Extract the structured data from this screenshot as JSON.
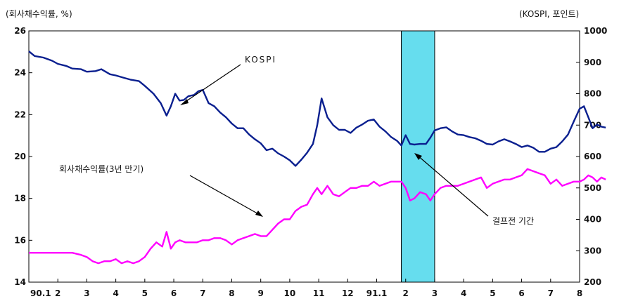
{
  "chart_data": {
    "type": "line",
    "left_axis_label": "(회사채수익률, %)",
    "right_axis_label": "(KOSPI, 포인트)",
    "left_ylim": [
      14,
      26
    ],
    "left_ticks": [
      "26",
      "24",
      "22",
      "20",
      "18",
      "16",
      "14"
    ],
    "right_ylim": [
      200,
      1000
    ],
    "right_ticks": [
      "1000",
      "900",
      "800",
      "700",
      "600",
      "500",
      "400",
      "300",
      "200"
    ],
    "x_tick_labels": [
      "90.1",
      "2",
      "3",
      "4",
      "5",
      "6",
      "7",
      "8",
      "9",
      "10",
      "11",
      "12",
      "91.1",
      "2",
      "3",
      "4",
      "5",
      "6",
      "7",
      "8"
    ],
    "shaded_period": {
      "start": 12.85,
      "end": 14.0,
      "color": "#66ddee"
    },
    "series": [
      {
        "name": "KOSPI",
        "axis": "right",
        "color": "#0a1f8f",
        "x": [
          0,
          0.2,
          0.5,
          0.8,
          1.0,
          1.3,
          1.5,
          1.8,
          2.0,
          2.3,
          2.5,
          2.8,
          3.0,
          3.3,
          3.5,
          3.8,
          4.0,
          4.3,
          4.55,
          4.75,
          4.9,
          5.05,
          5.2,
          5.35,
          5.5,
          5.7,
          5.85,
          6.0,
          6.2,
          6.4,
          6.6,
          6.8,
          7.0,
          7.2,
          7.4,
          7.6,
          7.8,
          8.0,
          8.2,
          8.4,
          8.6,
          8.8,
          9.0,
          9.2,
          9.4,
          9.6,
          9.8,
          9.95,
          10.1,
          10.3,
          10.5,
          10.7,
          10.9,
          11.1,
          11.3,
          11.5,
          11.7,
          11.9,
          12.1,
          12.3,
          12.5,
          12.7,
          12.85,
          13.0,
          13.15,
          13.3,
          13.5,
          13.7,
          13.85,
          14.0,
          14.2,
          14.4,
          14.6,
          14.8,
          15.0,
          15.2,
          15.4,
          15.6,
          15.8,
          16.0,
          16.2,
          16.4,
          16.6,
          16.8,
          17.0,
          17.2,
          17.4,
          17.6,
          17.8,
          18.0,
          18.2,
          18.4,
          18.6,
          18.8,
          19.0,
          19.15,
          19.3,
          19.45,
          19.6,
          19.75,
          19.9
        ],
        "values": [
          935,
          920,
          915,
          905,
          895,
          888,
          880,
          878,
          870,
          872,
          878,
          862,
          858,
          850,
          845,
          840,
          825,
          800,
          770,
          730,
          760,
          800,
          778,
          780,
          792,
          796,
          808,
          812,
          770,
          760,
          740,
          725,
          705,
          690,
          690,
          670,
          655,
          642,
          620,
          625,
          610,
          600,
          588,
          570,
          590,
          612,
          640,
          700,
          785,
          725,
          700,
          685,
          685,
          675,
          692,
          702,
          714,
          718,
          695,
          680,
          662,
          650,
          635,
          668,
          640,
          638,
          640,
          640,
          660,
          683,
          690,
          693,
          680,
          670,
          668,
          662,
          658,
          650,
          640,
          638,
          648,
          655,
          648,
          640,
          630,
          635,
          628,
          615,
          615,
          625,
          630,
          648,
          670,
          712,
          752,
          760,
          725,
          690,
          702,
          695,
          692
        ]
      },
      {
        "name": "회사채수익률(3년 만기)",
        "axis": "left",
        "color": "#ff00ff",
        "x": [
          0,
          0.3,
          0.6,
          0.9,
          1.2,
          1.5,
          1.8,
          2.0,
          2.2,
          2.4,
          2.6,
          2.8,
          3.0,
          3.2,
          3.4,
          3.6,
          3.8,
          4.0,
          4.2,
          4.4,
          4.6,
          4.75,
          4.9,
          5.05,
          5.2,
          5.4,
          5.6,
          5.8,
          6.0,
          6.2,
          6.4,
          6.6,
          6.8,
          7.0,
          7.2,
          7.4,
          7.6,
          7.8,
          8.0,
          8.2,
          8.4,
          8.6,
          8.8,
          9.0,
          9.2,
          9.4,
          9.6,
          9.8,
          9.95,
          10.1,
          10.3,
          10.5,
          10.7,
          10.9,
          11.1,
          11.3,
          11.5,
          11.7,
          11.9,
          12.1,
          12.3,
          12.5,
          12.7,
          12.85,
          13.0,
          13.15,
          13.3,
          13.5,
          13.7,
          13.85,
          14.0,
          14.2,
          14.4,
          14.6,
          14.8,
          15.0,
          15.2,
          15.4,
          15.6,
          15.8,
          16.0,
          16.2,
          16.4,
          16.6,
          16.8,
          17.0,
          17.2,
          17.4,
          17.6,
          17.8,
          18.0,
          18.2,
          18.4,
          18.6,
          18.8,
          19.0,
          19.15,
          19.3,
          19.45,
          19.6,
          19.75,
          19.9
        ],
        "values": [
          15.4,
          15.4,
          15.4,
          15.4,
          15.4,
          15.4,
          15.3,
          15.2,
          15.0,
          14.9,
          15.0,
          15.0,
          15.1,
          14.9,
          15.0,
          14.9,
          15.0,
          15.2,
          15.6,
          15.9,
          15.7,
          16.4,
          15.6,
          15.9,
          16.0,
          15.9,
          15.9,
          15.9,
          16.0,
          16.0,
          16.1,
          16.1,
          16.0,
          15.8,
          16.0,
          16.1,
          16.2,
          16.3,
          16.2,
          16.2,
          16.5,
          16.8,
          17.0,
          17.0,
          17.4,
          17.6,
          17.7,
          18.2,
          18.5,
          18.2,
          18.6,
          18.2,
          18.1,
          18.3,
          18.5,
          18.5,
          18.6,
          18.6,
          18.8,
          18.6,
          18.7,
          18.8,
          18.8,
          18.8,
          18.5,
          17.9,
          18.0,
          18.3,
          18.2,
          17.9,
          18.2,
          18.5,
          18.6,
          18.6,
          18.6,
          18.7,
          18.8,
          18.9,
          19.0,
          18.5,
          18.7,
          18.8,
          18.9,
          18.9,
          19.0,
          19.1,
          19.4,
          19.3,
          19.2,
          19.1,
          18.7,
          18.9,
          18.6,
          18.7,
          18.8,
          18.8,
          18.9,
          19.1,
          19.0,
          18.8,
          19.0,
          18.9
        ]
      }
    ],
    "annotations": {
      "kospi_label": "KOSPI",
      "bond_label": "회사채수익률(3년 만기)",
      "period_label": "걸프전 기간"
    }
  }
}
